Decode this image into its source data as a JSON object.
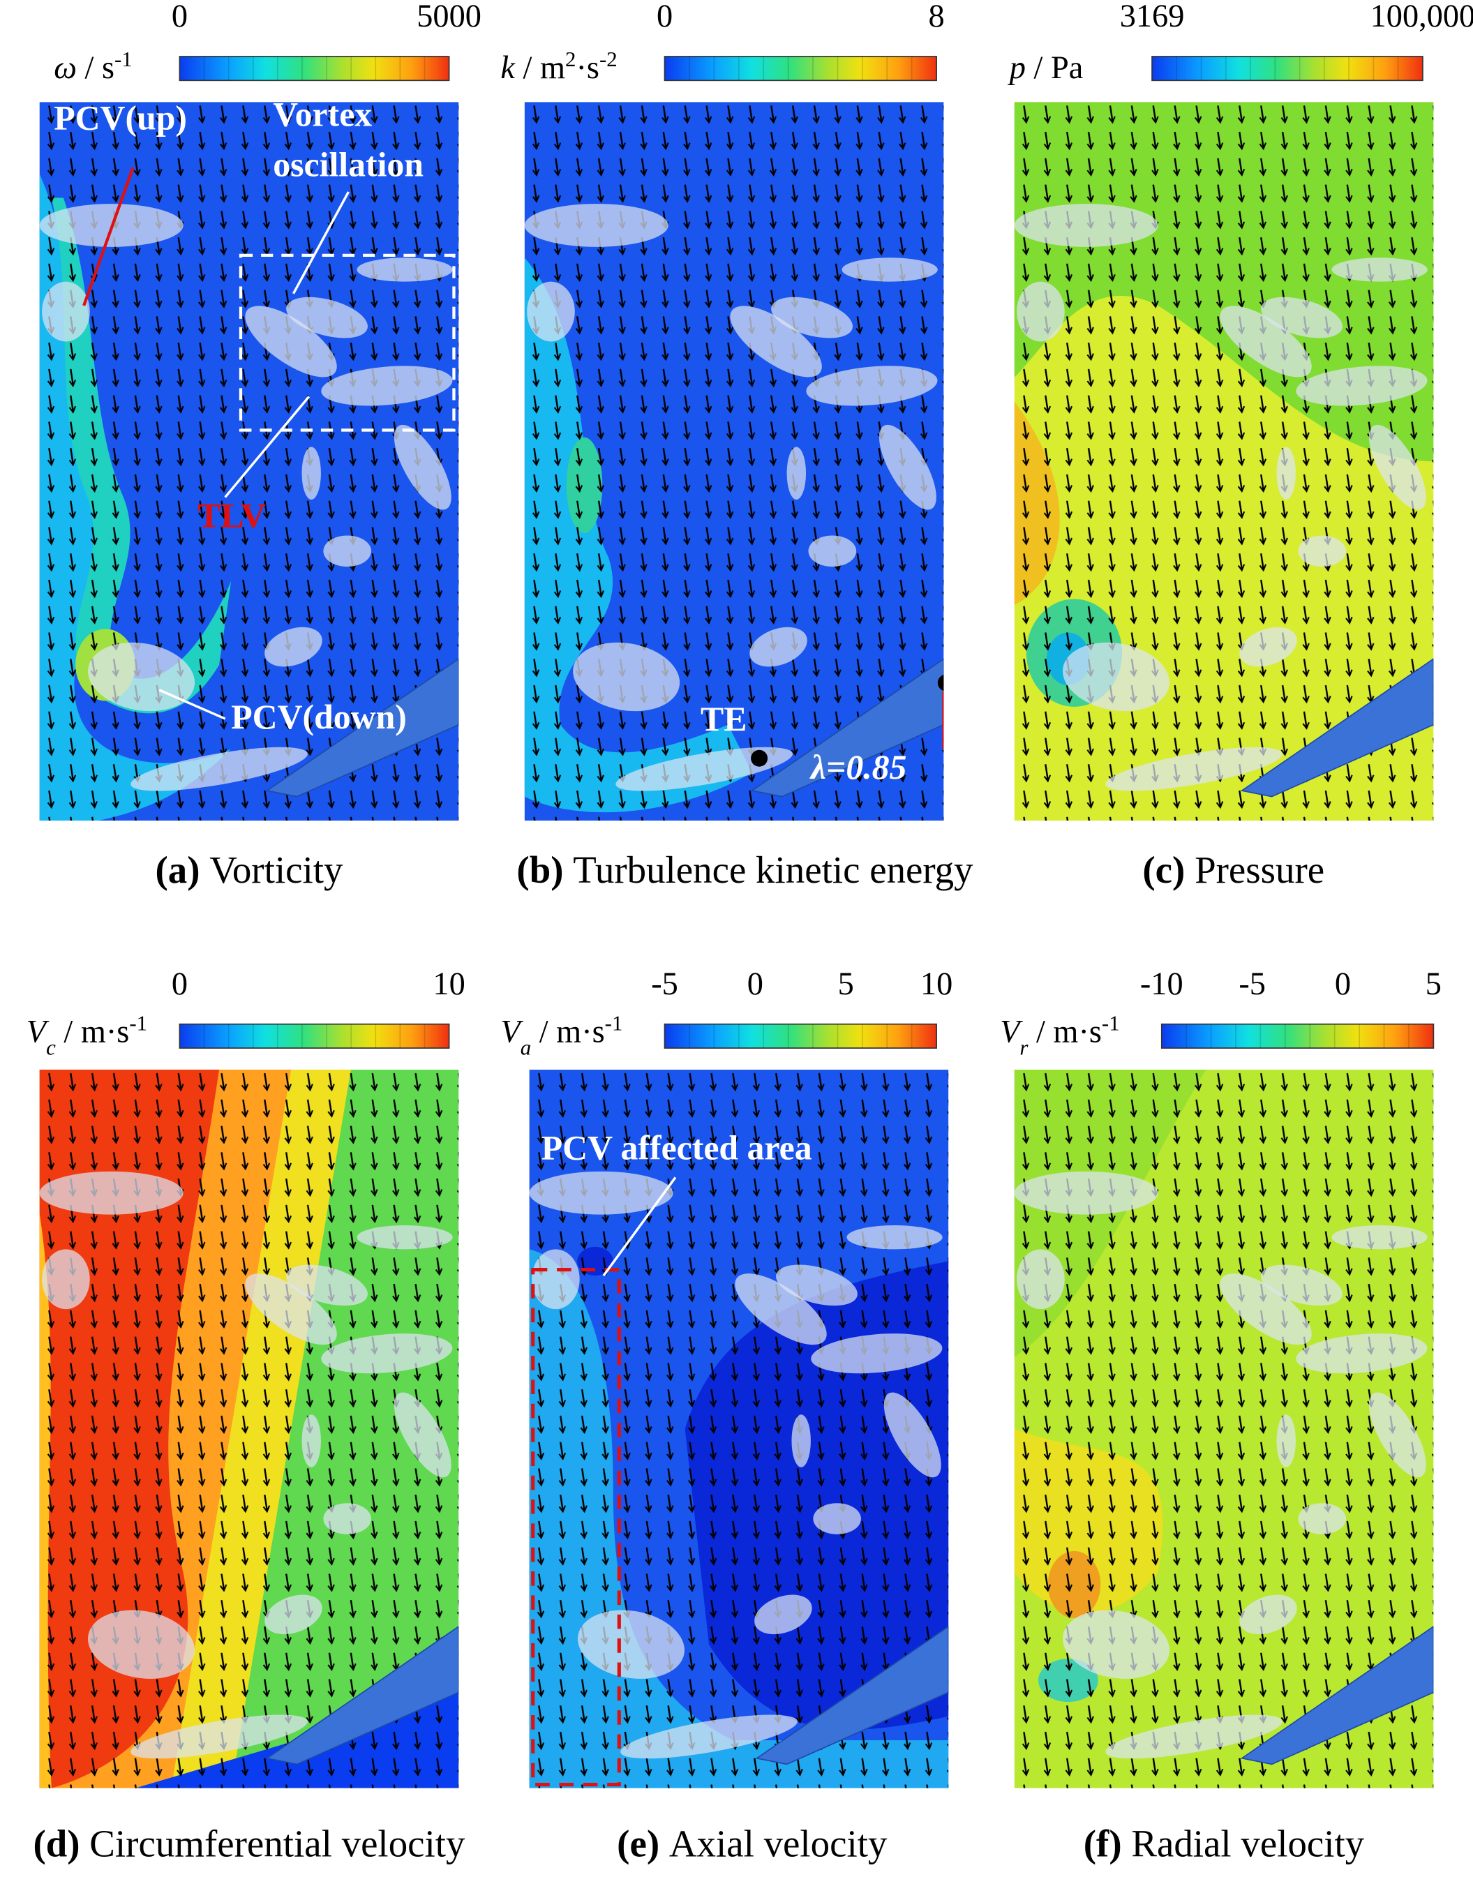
{
  "panels": [
    {
      "label": "(a)",
      "caption": "Vorticity",
      "colorbar": {
        "title": [
          {
            "t": "ω",
            "s": "i"
          },
          {
            "t": " / s",
            "s": "n"
          },
          {
            "t": "-1",
            "s": "sup"
          }
        ],
        "ticks": [
          "0",
          "5000"
        ]
      },
      "annotations": [
        "PCV(up)",
        "Vortex",
        "oscillation",
        "TLV",
        "PCV(down)"
      ]
    },
    {
      "label": "(b)",
      "caption": "Turbulence kinetic energy",
      "colorbar": {
        "title": [
          {
            "t": "k",
            "s": "i"
          },
          {
            "t": " / m",
            "s": "n"
          },
          {
            "t": "2",
            "s": "sup"
          },
          {
            "t": "·s",
            "s": "n"
          },
          {
            "t": "-2",
            "s": "sup"
          }
        ],
        "ticks": [
          "0",
          "8"
        ]
      },
      "annotations": [
        "TE",
        "λ=0.85"
      ]
    },
    {
      "label": "(c)",
      "caption": "Pressure",
      "colorbar": {
        "title": [
          {
            "t": "p",
            "s": "i"
          },
          {
            "t": " / Pa",
            "s": "n"
          }
        ],
        "ticks": [
          "3169",
          "100,000"
        ]
      },
      "annotations": []
    },
    {
      "label": "(d)",
      "caption": "Circumferential velocity",
      "colorbar": {
        "title": [
          {
            "t": "V",
            "s": "i"
          },
          {
            "t": "c",
            "s": "sub"
          },
          {
            "t": " / m·s",
            "s": "n"
          },
          {
            "t": "-1",
            "s": "sup"
          }
        ],
        "ticks": [
          "0",
          "10"
        ]
      },
      "annotations": []
    },
    {
      "label": "(e)",
      "caption": "Axial velocity",
      "colorbar": {
        "title": [
          {
            "t": "V",
            "s": "i"
          },
          {
            "t": "a",
            "s": "sub"
          },
          {
            "t": " / m·s",
            "s": "n"
          },
          {
            "t": "-1",
            "s": "sup"
          }
        ],
        "ticks": [
          "-5",
          "0",
          "5",
          "10"
        ]
      },
      "annotations": [
        "PCV affected area"
      ]
    },
    {
      "label": "(f)",
      "caption": "Radial velocity",
      "colorbar": {
        "title": [
          {
            "t": "V",
            "s": "i"
          },
          {
            "t": "r",
            "s": "sub"
          },
          {
            "t": " / m·s",
            "s": "n"
          },
          {
            "t": "-1",
            "s": "sup"
          }
        ],
        "ticks": [
          "-10",
          "-5",
          "0",
          "5"
        ]
      },
      "annotations": []
    }
  ]
}
